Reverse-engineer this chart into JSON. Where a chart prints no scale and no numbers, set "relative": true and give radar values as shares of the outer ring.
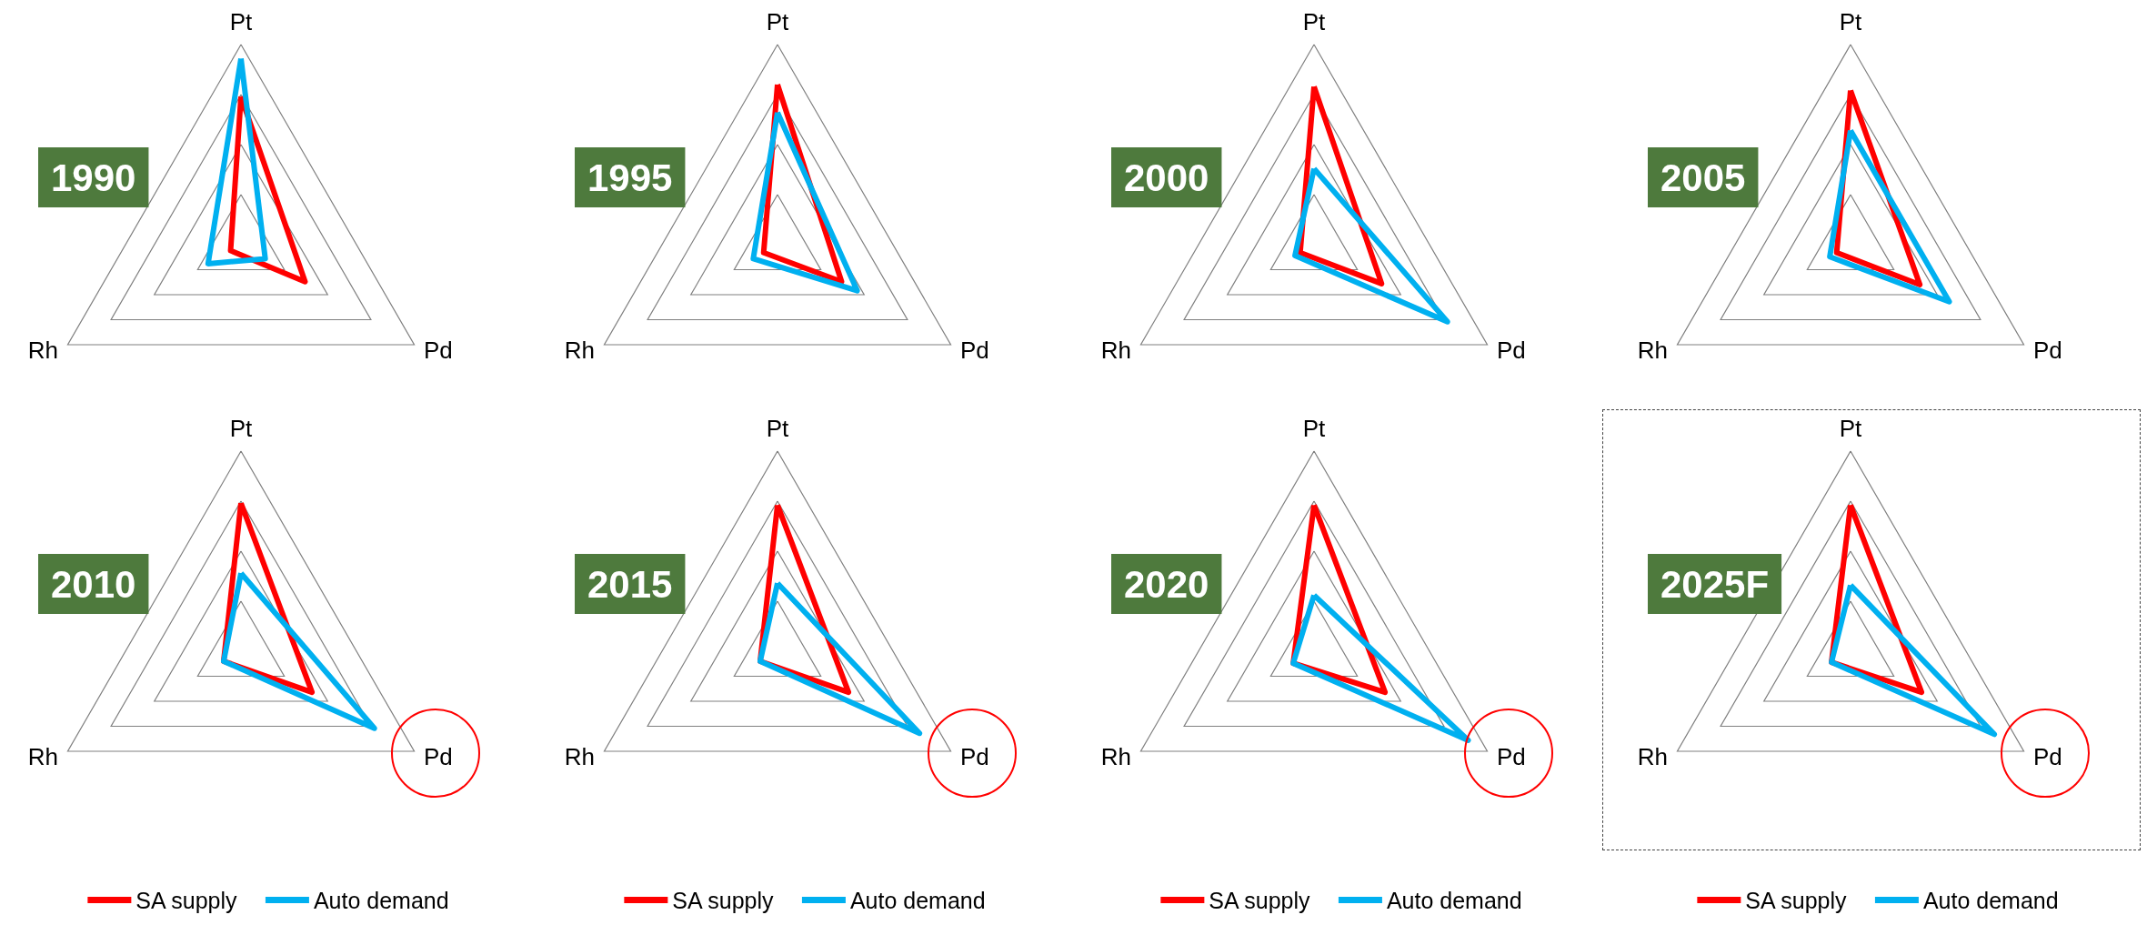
{
  "chart_data": [
    {
      "type": "radar",
      "title": "1990",
      "categories": [
        "Pt",
        "Pd",
        "Rh"
      ],
      "relative": true,
      "marker": "none",
      "legend": false,
      "series": [
        {
          "color": "#ff0000",
          "values": [
            0.74,
            0.37,
            0.06
          ]
        },
        {
          "color": "#00b0f0",
          "values": [
            0.93,
            0.14,
            0.19
          ]
        }
      ]
    },
    {
      "type": "radar",
      "title": "1995",
      "categories": [
        "Pt",
        "Pd",
        "Rh"
      ],
      "relative": true,
      "marker": "none",
      "legend": false,
      "series": [
        {
          "color": "#ff0000",
          "values": [
            0.8,
            0.37,
            0.08
          ]
        },
        {
          "color": "#00b0f0",
          "values": [
            0.66,
            0.46,
            0.14
          ]
        }
      ]
    },
    {
      "type": "radar",
      "title": "2000",
      "categories": [
        "Pt",
        "Pd",
        "Rh"
      ],
      "relative": true,
      "marker": "none",
      "legend": false,
      "series": [
        {
          "color": "#ff0000",
          "values": [
            0.79,
            0.39,
            0.08
          ]
        },
        {
          "color": "#00b0f0",
          "values": [
            0.38,
            0.77,
            0.11
          ]
        }
      ]
    },
    {
      "type": "radar",
      "title": "2005",
      "categories": [
        "Pt",
        "Pd",
        "Rh"
      ],
      "relative": true,
      "marker": "none",
      "legend": false,
      "series": [
        {
          "color": "#ff0000",
          "values": [
            0.77,
            0.4,
            0.08
          ]
        },
        {
          "color": "#00b0f0",
          "values": [
            0.57,
            0.57,
            0.12
          ]
        }
      ]
    },
    {
      "type": "radar",
      "title": "2010",
      "categories": [
        "Pt",
        "Pd",
        "Rh"
      ],
      "relative": true,
      "marker": "none",
      "legend": "bottom",
      "series": [
        {
          "name": "SA supply",
          "color": "#ff0000",
          "values": [
            0.74,
            0.41,
            0.1
          ]
        },
        {
          "name": "Auto demand",
          "color": "#00b0f0",
          "values": [
            0.39,
            0.77,
            0.1
          ]
        }
      ]
    },
    {
      "type": "radar",
      "title": "2015",
      "categories": [
        "Pt",
        "Pd",
        "Rh"
      ],
      "relative": true,
      "marker": "none",
      "legend": "bottom",
      "series": [
        {
          "name": "SA supply",
          "color": "#ff0000",
          "values": [
            0.73,
            0.41,
            0.1
          ]
        },
        {
          "name": "Auto demand",
          "color": "#00b0f0",
          "values": [
            0.34,
            0.82,
            0.1
          ]
        }
      ]
    },
    {
      "type": "radar",
      "title": "2020",
      "categories": [
        "Pt",
        "Pd",
        "Rh"
      ],
      "relative": true,
      "marker": "none",
      "legend": "bottom",
      "series": [
        {
          "name": "SA supply",
          "color": "#ff0000",
          "values": [
            0.73,
            0.41,
            0.12
          ]
        },
        {
          "name": "Auto demand",
          "color": "#00b0f0",
          "values": [
            0.28,
            0.89,
            0.12
          ]
        }
      ]
    },
    {
      "type": "radar",
      "title": "2025F",
      "categories": [
        "Pt",
        "Pd",
        "Rh"
      ],
      "relative": true,
      "marker": "none",
      "legend": "bottom",
      "series": [
        {
          "name": "SA supply",
          "color": "#ff0000",
          "values": [
            0.73,
            0.41,
            0.11
          ]
        },
        {
          "name": "Auto demand",
          "color": "#00b0f0",
          "values": [
            0.33,
            0.83,
            0.11
          ]
        }
      ]
    }
  ]
}
